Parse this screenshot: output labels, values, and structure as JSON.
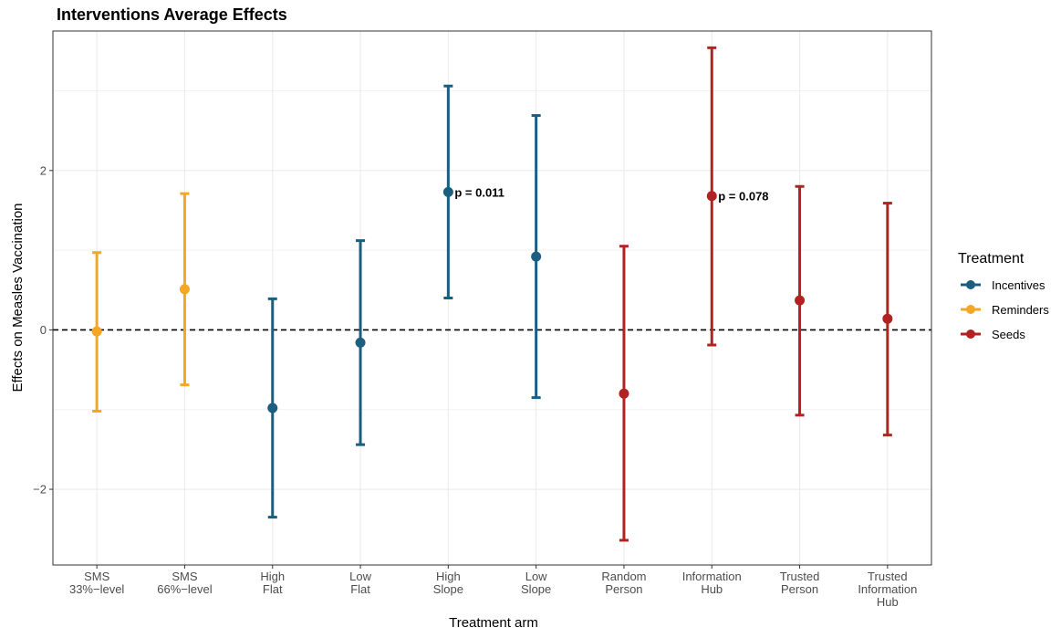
{
  "chart_data": {
    "type": "errorbar",
    "title": "Interventions Average Effects",
    "xlabel": "Treatment arm",
    "ylabel": "Effects on Measles Vaccination",
    "ylim": [
      -2.95,
      3.75
    ],
    "yticks": [
      -2,
      0,
      2
    ],
    "ytick_labels": [
      "−2",
      "0",
      "2"
    ],
    "grid": true,
    "reference_line": 0,
    "legend": {
      "title": "Treatment",
      "position": "right",
      "entries": [
        {
          "name": "Incentives",
          "color": "#1b5e80"
        },
        {
          "name": "Reminders",
          "color": "#f5a623"
        },
        {
          "name": "Seeds",
          "color": "#b22222"
        }
      ]
    },
    "categories": [
      {
        "label": [
          "SMS",
          "33%−level"
        ],
        "group": "Reminders",
        "estimate": -0.02,
        "lower": -1.02,
        "upper": 0.97
      },
      {
        "label": [
          "SMS",
          "66%−level"
        ],
        "group": "Reminders",
        "estimate": 0.51,
        "lower": -0.69,
        "upper": 1.71
      },
      {
        "label": [
          "High",
          "Flat"
        ],
        "group": "Incentives",
        "estimate": -0.98,
        "lower": -2.35,
        "upper": 0.39
      },
      {
        "label": [
          "Low",
          "Flat"
        ],
        "group": "Incentives",
        "estimate": -0.16,
        "lower": -1.44,
        "upper": 1.12
      },
      {
        "label": [
          "High",
          "Slope"
        ],
        "group": "Incentives",
        "estimate": 1.73,
        "lower": 0.4,
        "upper": 3.06,
        "annotation": "p = 0.011"
      },
      {
        "label": [
          "Low",
          "Slope"
        ],
        "group": "Incentives",
        "estimate": 0.92,
        "lower": -0.85,
        "upper": 2.69
      },
      {
        "label": [
          "Random",
          "Person"
        ],
        "group": "Seeds",
        "estimate": -0.8,
        "lower": -2.64,
        "upper": 1.05
      },
      {
        "label": [
          "Information",
          "Hub"
        ],
        "group": "Seeds",
        "estimate": 1.68,
        "lower": -0.19,
        "upper": 3.54,
        "annotation": "p = 0.078"
      },
      {
        "label": [
          "Trusted",
          "Person"
        ],
        "group": "Seeds",
        "estimate": 0.37,
        "lower": -1.07,
        "upper": 1.8
      },
      {
        "label": [
          "Trusted",
          "Information",
          "Hub"
        ],
        "group": "Seeds",
        "estimate": 0.14,
        "lower": -1.32,
        "upper": 1.59
      }
    ]
  }
}
